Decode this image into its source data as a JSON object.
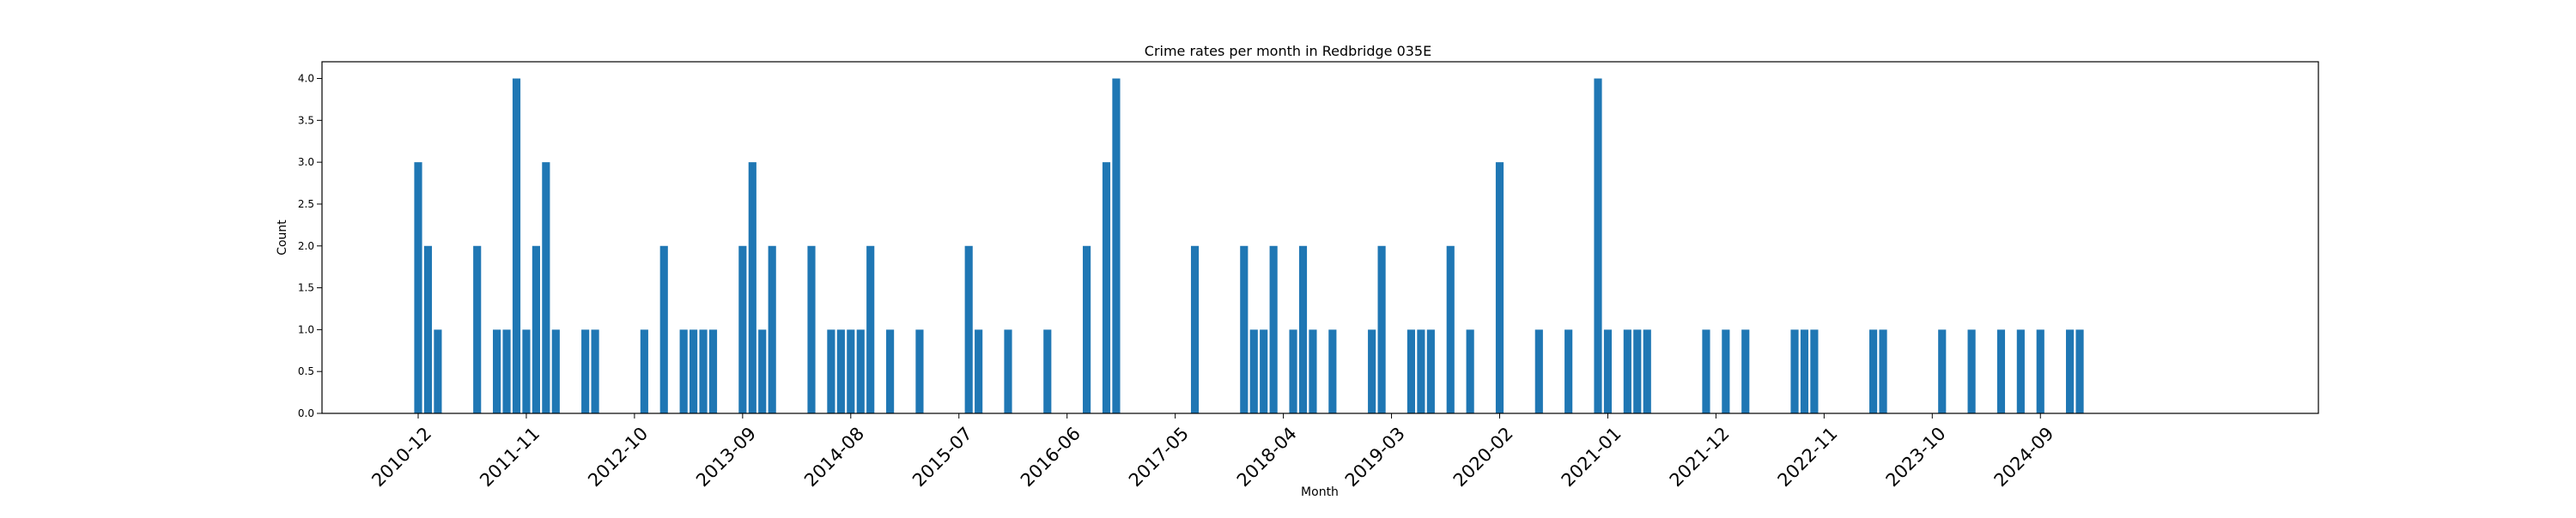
{
  "chart_data": {
    "type": "bar",
    "title": "Crime rates per month in Redbridge 035E",
    "xlabel": "Month",
    "ylabel": "Count",
    "ylim": [
      0,
      4.2
    ],
    "yticks": [
      "0.0",
      "0.5",
      "1.0",
      "1.5",
      "2.0",
      "2.5",
      "3.0",
      "3.5",
      "4.0"
    ],
    "xticks": [
      "2010-12",
      "2011-11",
      "2012-10",
      "2013-09",
      "2014-08",
      "2015-07",
      "2016-06",
      "2017-05",
      "2018-04",
      "2019-03",
      "2020-02",
      "2021-01",
      "2021-12",
      "2022-11",
      "2023-10",
      "2024-09"
    ],
    "bar_color": "#1f77b4",
    "grid": false,
    "legend": "none",
    "x": [
      "2010-12",
      "2011-01",
      "2011-02",
      "2011-06",
      "2011-08",
      "2011-09",
      "2011-10",
      "2011-11",
      "2011-12",
      "2012-01",
      "2012-02",
      "2012-05",
      "2012-06",
      "2012-11",
      "2013-01",
      "2013-03",
      "2013-04",
      "2013-05",
      "2013-06",
      "2013-09",
      "2013-10",
      "2013-11",
      "2013-12",
      "2014-04",
      "2014-06",
      "2014-07",
      "2014-08",
      "2014-09",
      "2014-10",
      "2014-12",
      "2015-03",
      "2015-08",
      "2015-09",
      "2015-12",
      "2016-04",
      "2016-08",
      "2016-10",
      "2016-11",
      "2017-07",
      "2017-12",
      "2018-01",
      "2018-02",
      "2018-03",
      "2018-05",
      "2018-06",
      "2018-07",
      "2018-09",
      "2019-01",
      "2019-02",
      "2019-05",
      "2019-06",
      "2019-07",
      "2019-09",
      "2019-11",
      "2020-02",
      "2020-06",
      "2020-09",
      "2020-12",
      "2021-01",
      "2021-03",
      "2021-04",
      "2021-05",
      "2021-11",
      "2022-01",
      "2022-03",
      "2022-08",
      "2022-09",
      "2022-10",
      "2023-04",
      "2023-05",
      "2023-11",
      "2024-02",
      "2024-05",
      "2024-07",
      "2024-09",
      "2024-12",
      "2025-01"
    ],
    "values": [
      3,
      2,
      1,
      2,
      1,
      1,
      4,
      1,
      2,
      3,
      1,
      1,
      1,
      1,
      2,
      1,
      1,
      1,
      1,
      2,
      3,
      1,
      2,
      2,
      1,
      1,
      1,
      1,
      2,
      1,
      1,
      2,
      1,
      1,
      1,
      2,
      3,
      4,
      2,
      2,
      1,
      1,
      2,
      1,
      2,
      1,
      1,
      1,
      2,
      1,
      1,
      1,
      2,
      1,
      3,
      1,
      1,
      4,
      1,
      1,
      1,
      1,
      1,
      1,
      1,
      1,
      1,
      1,
      1,
      1,
      1,
      1,
      1,
      1,
      1,
      1,
      1
    ]
  }
}
